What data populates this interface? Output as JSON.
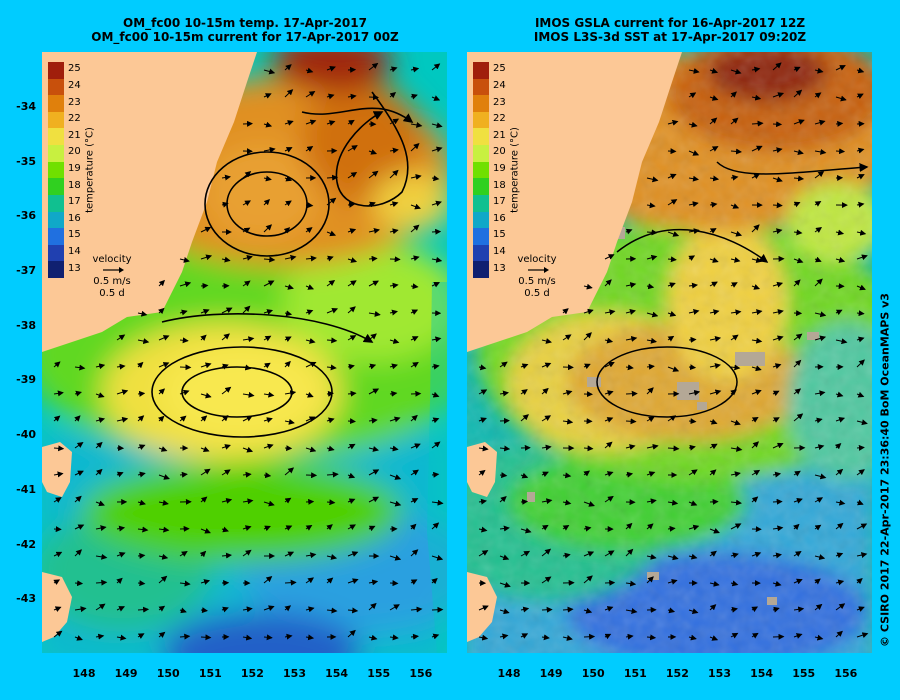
{
  "left_panel": {
    "title_line1": "OM_fc00 10-15m temp. 17-Apr-2017",
    "title_line2": "OM_fc00 10-15m current for 17-Apr-2017 00Z"
  },
  "right_panel": {
    "title_line1": "IMOS GSLA current for 16-Apr-2017 12Z",
    "title_line2": "IMOS L3S-3d SST at 17-Apr-2017 09:20Z"
  },
  "y_ticks": [
    "-34",
    "-35",
    "-36",
    "-37",
    "-38",
    "-39",
    "-40",
    "-41",
    "-42",
    "-43"
  ],
  "x_ticks": [
    "148",
    "149",
    "150",
    "151",
    "152",
    "153",
    "154",
    "155",
    "156"
  ],
  "colorbar": {
    "title": "temperature (°C)",
    "labels": [
      "25",
      "24",
      "23",
      "22",
      "21",
      "20",
      "19",
      "18",
      "17",
      "16",
      "15",
      "14",
      "13"
    ],
    "colors": [
      "#a01e0c",
      "#c8500c",
      "#e0800c",
      "#f0b020",
      "#f0e040",
      "#c8f040",
      "#70e000",
      "#30d020",
      "#10c090",
      "#10a8c8",
      "#2070e0",
      "#2040b0",
      "#102070"
    ]
  },
  "velocity_legend": {
    "title": "velocity",
    "speed": "0.5 m/s",
    "days": "0.5 d"
  },
  "credit": "© CSIRO 2017  22-Apr-2017 23:36:40 BoM OceanMAPS v3",
  "map_colors": {
    "land": "#fcc896",
    "background": "#00ccff",
    "cloud": "#b4a896"
  }
}
